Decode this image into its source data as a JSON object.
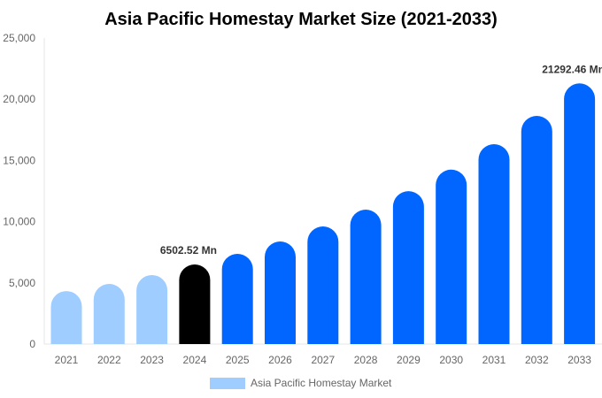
{
  "chart_data": {
    "type": "bar",
    "title": "Asia Pacific Homestay Market Size (2021-2033)",
    "xlabel": "",
    "ylabel": "",
    "ylim": [
      0,
      25000
    ],
    "yticks": [
      "0",
      "5,000",
      "10,000",
      "15,000",
      "20,000",
      "25,000"
    ],
    "categories": [
      "2021",
      "2022",
      "2023",
      "2024",
      "2025",
      "2026",
      "2027",
      "2028",
      "2029",
      "2030",
      "2031",
      "2032",
      "2033"
    ],
    "series": [
      {
        "name": "Asia Pacific Homestay Market",
        "values": [
          4330,
          4910,
          5640,
          6502.52,
          7370,
          8380,
          9610,
          10980,
          12490,
          14250,
          16330,
          18640,
          21292.46
        ]
      }
    ],
    "bar_colors": {
      "historical": "#a0cdff",
      "base_year": "#000000",
      "forecast": "#0066ff"
    },
    "data_labels": [
      {
        "category": "2024",
        "text": "6502.52 Mn"
      },
      {
        "category": "2033",
        "text": "21292.46 Mn"
      }
    ],
    "legend": {
      "position": "bottom",
      "label": "Asia Pacific Homestay Market",
      "color": "#a0cdff"
    },
    "grid": false
  }
}
